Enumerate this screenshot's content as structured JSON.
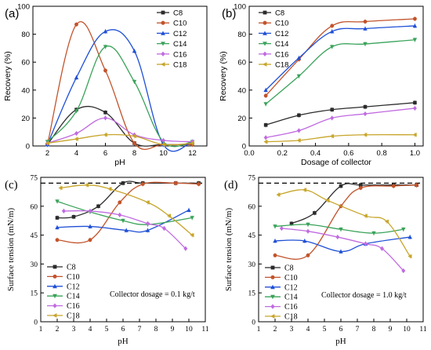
{
  "colors": {
    "C8": "#2b2b2b",
    "C10": "#c2532b",
    "C12": "#1f4fd6",
    "C14": "#3aa35a",
    "C16": "#c06be0",
    "C18": "#c7a52a",
    "dashed": "#000000"
  },
  "chart_data": [
    {
      "panel": "(a)",
      "type": "line",
      "xlabel": "pH",
      "ylabel": "Recovery (%)",
      "xlim": [
        1,
        13
      ],
      "ylim": [
        0,
        100
      ],
      "xticks": [
        2,
        4,
        6,
        8,
        10,
        12
      ],
      "yticks": [
        0,
        20,
        40,
        60,
        80,
        100
      ],
      "legend": "top-right",
      "series": [
        {
          "name": "C8",
          "marker": "square",
          "x": [
            2,
            4,
            6,
            8,
            10,
            12
          ],
          "y": [
            1,
            26,
            24,
            2,
            1,
            1
          ]
        },
        {
          "name": "C10",
          "marker": "circle",
          "x": [
            2,
            4,
            6,
            8,
            10,
            12
          ],
          "y": [
            1,
            87,
            54,
            2,
            1,
            1
          ]
        },
        {
          "name": "C12",
          "marker": "triangle-up",
          "x": [
            2,
            4,
            6,
            8,
            10,
            12
          ],
          "y": [
            1,
            49,
            82,
            68,
            1,
            3
          ]
        },
        {
          "name": "C14",
          "marker": "triangle-down",
          "x": [
            2,
            4,
            6,
            8,
            10,
            12
          ],
          "y": [
            3,
            25,
            71,
            46,
            3,
            3
          ]
        },
        {
          "name": "C16",
          "marker": "diamond",
          "x": [
            2,
            4,
            6,
            8,
            10,
            12
          ],
          "y": [
            2,
            9,
            20,
            8,
            4,
            3
          ]
        },
        {
          "name": "C18",
          "marker": "triangle-left",
          "x": [
            2,
            4,
            6,
            8,
            10,
            12
          ],
          "y": [
            2,
            5,
            8,
            7,
            1,
            2
          ]
        }
      ]
    },
    {
      "panel": "(b)",
      "type": "line",
      "xlabel": "Dosage of collector",
      "ylabel": "Recovery (%)",
      "xlim": [
        0,
        1.05
      ],
      "ylim": [
        0,
        100
      ],
      "xticks": [
        0.0,
        0.2,
        0.4,
        0.6,
        0.8,
        1.0
      ],
      "yticks": [
        0,
        20,
        40,
        60,
        80,
        100
      ],
      "legend": "top-left",
      "series": [
        {
          "name": "C8",
          "marker": "square",
          "x": [
            0.1,
            0.3,
            0.5,
            0.7,
            1.0
          ],
          "y": [
            15,
            22,
            26,
            28,
            31
          ]
        },
        {
          "name": "C10",
          "marker": "circle",
          "x": [
            0.1,
            0.3,
            0.5,
            0.7,
            1.0
          ],
          "y": [
            36,
            62,
            86,
            89,
            91
          ]
        },
        {
          "name": "C12",
          "marker": "triangle-up",
          "x": [
            0.1,
            0.3,
            0.5,
            0.7,
            1.0
          ],
          "y": [
            40,
            63,
            82,
            84,
            86
          ]
        },
        {
          "name": "C14",
          "marker": "triangle-down",
          "x": [
            0.1,
            0.3,
            0.5,
            0.7,
            1.0
          ],
          "y": [
            30,
            50,
            71,
            73,
            76
          ]
        },
        {
          "name": "C16",
          "marker": "diamond",
          "x": [
            0.1,
            0.3,
            0.5,
            0.7,
            1.0
          ],
          "y": [
            6,
            11,
            20,
            23,
            27
          ]
        },
        {
          "name": "C18",
          "marker": "triangle-left",
          "x": [
            0.1,
            0.3,
            0.5,
            0.7,
            1.0
          ],
          "y": [
            3,
            4,
            7,
            8,
            8
          ]
        }
      ]
    },
    {
      "panel": "(c)",
      "type": "line",
      "xlabel": "pH",
      "ylabel": "Surface tension (mN/m)",
      "annotation": "Collector dosage = 0.1 kg/t",
      "xlim": [
        1,
        11
      ],
      "ylim": [
        0,
        75
      ],
      "xticks": [
        1,
        2,
        3,
        4,
        5,
        6,
        7,
        8,
        9,
        10,
        11
      ],
      "yticks": [
        0,
        15,
        30,
        45,
        60,
        75
      ],
      "reference_line": 72,
      "legend": "bottom-left",
      "series": [
        {
          "name": "C8",
          "marker": "square",
          "x": [
            2,
            3,
            4.5,
            6,
            7.2,
            9.2,
            10.6
          ],
          "y": [
            54,
            54.5,
            60,
            72,
            72,
            72,
            72
          ]
        },
        {
          "name": "C10",
          "marker": "circle",
          "x": [
            2,
            4,
            5.8,
            7.2,
            9.2,
            10.6
          ],
          "y": [
            42.5,
            42.5,
            62,
            71.5,
            72,
            71.5
          ]
        },
        {
          "name": "C12",
          "marker": "triangle-up",
          "x": [
            2,
            4,
            6.2,
            7.5,
            10
          ],
          "y": [
            49,
            49.5,
            47.5,
            47.5,
            58
          ]
        },
        {
          "name": "C14",
          "marker": "triangle-down",
          "x": [
            2,
            4,
            6,
            7.5,
            10.2
          ],
          "y": [
            62.5,
            57,
            52.5,
            50.5,
            54
          ]
        },
        {
          "name": "C16",
          "marker": "diamond",
          "x": [
            2.4,
            4,
            5.8,
            7.5,
            8.5,
            9.8
          ],
          "y": [
            57.5,
            57.5,
            55.5,
            51,
            48.5,
            38
          ]
        },
        {
          "name": "C18",
          "marker": "triangle-left",
          "x": [
            2.2,
            3.8,
            5.2,
            7.5,
            8.8,
            10.2
          ],
          "y": [
            69.5,
            71,
            69,
            62,
            55,
            45
          ]
        }
      ]
    },
    {
      "panel": "(d)",
      "type": "line",
      "xlabel": "pH",
      "ylabel": "Surface tension (mN/m)",
      "annotation": "Collector dosage = 1.0 kg/t",
      "xlim": [
        1,
        11
      ],
      "ylim": [
        0,
        75
      ],
      "xticks": [
        1,
        2,
        3,
        4,
        5,
        6,
        7,
        8,
        9,
        10,
        11
      ],
      "yticks": [
        0,
        15,
        30,
        45,
        60,
        75
      ],
      "reference_line": 72,
      "legend": "bottom-left",
      "series": [
        {
          "name": "C8",
          "marker": "square",
          "x": [
            3,
            4.4,
            6,
            7.2,
            9.2,
            10.6
          ],
          "y": [
            51,
            56.5,
            70.5,
            71,
            71,
            71
          ]
        },
        {
          "name": "C10",
          "marker": "circle",
          "x": [
            2,
            4,
            6,
            7.2,
            9.2,
            10.6
          ],
          "y": [
            34.5,
            34.5,
            60,
            69.5,
            70.5,
            71
          ]
        },
        {
          "name": "C12",
          "marker": "triangle-up",
          "x": [
            2,
            3.8,
            6,
            7.5,
            10.2
          ],
          "y": [
            42,
            42,
            36.5,
            40.5,
            44
          ]
        },
        {
          "name": "C14",
          "marker": "triangle-down",
          "x": [
            2,
            4,
            6,
            8,
            9.8
          ],
          "y": [
            49.5,
            50.5,
            48,
            46,
            48
          ]
        },
        {
          "name": "C16",
          "marker": "diamond",
          "x": [
            2.4,
            4,
            5.8,
            7.5,
            8.5,
            9.8
          ],
          "y": [
            48.5,
            47,
            44,
            40.5,
            38,
            26.5
          ]
        },
        {
          "name": "C18",
          "marker": "triangle-left",
          "x": [
            2.2,
            3.8,
            5.2,
            7.5,
            8.8,
            10.2
          ],
          "y": [
            66,
            68.5,
            63,
            55,
            52,
            34
          ]
        }
      ]
    }
  ]
}
